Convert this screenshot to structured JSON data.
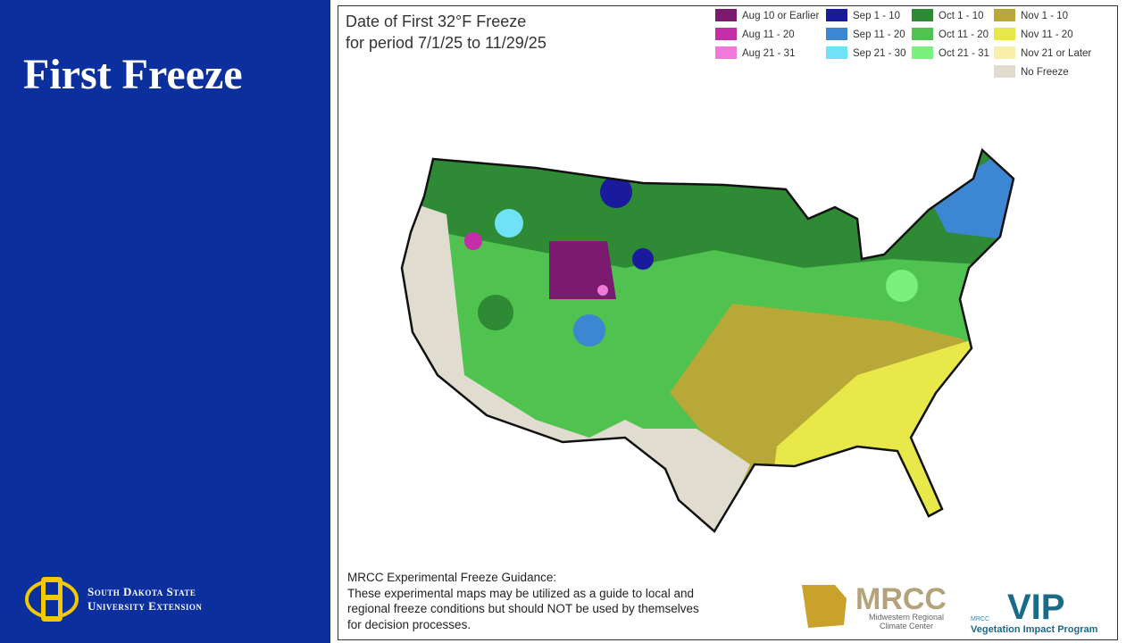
{
  "slide": {
    "title": "First Freeze",
    "logo_lines": [
      "South Dakota State",
      "University Extension"
    ]
  },
  "map": {
    "title": [
      "Date of First 32°F Freeze",
      "for period 7/1/25 to 11/29/25"
    ],
    "legend": [
      [
        {
          "label": "Aug 10 or Earlier",
          "color": "#7b1a6e"
        },
        {
          "label": "Aug 11 - 20",
          "color": "#c42ea8"
        },
        {
          "label": "Aug 21 - 31",
          "color": "#f07ad8"
        }
      ],
      [
        {
          "label": "Sep 1 - 10",
          "color": "#1a1a9c"
        },
        {
          "label": "Sep 11 - 20",
          "color": "#3c86d2"
        },
        {
          "label": "Sep 21 - 30",
          "color": "#6fe3f5"
        }
      ],
      [
        {
          "label": "Oct 1 - 10",
          "color": "#2e8a34"
        },
        {
          "label": "Oct 11 - 20",
          "color": "#4fc24f"
        },
        {
          "label": "Oct 21 - 31",
          "color": "#7cf07c"
        }
      ],
      [
        {
          "label": "Nov 1 - 10",
          "color": "#b8a838"
        },
        {
          "label": "Nov 11 - 20",
          "color": "#e8e84a"
        },
        {
          "label": "Nov 21 or Later",
          "color": "#f8f0a8"
        },
        {
          "label": "No Freeze",
          "color": "#e0ddd0"
        }
      ]
    ]
  },
  "footnote": [
    "MRCC Experimental Freeze Guidance:",
    "These experimental maps may be utilized as a guide to local and",
    "regional freeze conditions but should NOT be used by themselves",
    "for decision processes."
  ],
  "logos": {
    "mrcc": {
      "name": "MRCC",
      "lines": [
        "Midwestern Regional",
        "Climate Center"
      ]
    },
    "vip": {
      "name": "VIP",
      "small": "MRCC",
      "program": "Vegetation Impact Program"
    }
  }
}
